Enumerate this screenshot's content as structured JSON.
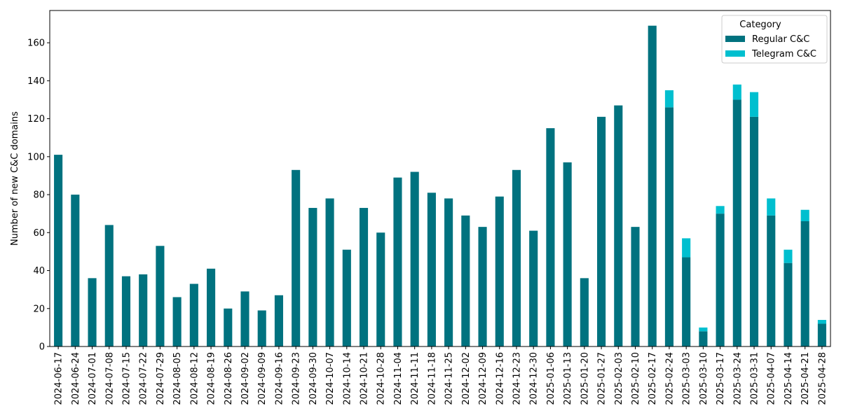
{
  "chart_data": {
    "type": "bar",
    "stacked": true,
    "xlabel": "",
    "ylabel": "Number of new C&C domains",
    "ylim": [
      0,
      177
    ],
    "yticks": [
      0,
      20,
      40,
      60,
      80,
      100,
      120,
      140,
      160
    ],
    "grid": false,
    "legend": {
      "title": "Category",
      "placement": "top-right"
    },
    "categories": [
      "2024-06-17",
      "2024-06-24",
      "2024-07-01",
      "2024-07-08",
      "2024-07-15",
      "2024-07-22",
      "2024-07-29",
      "2024-08-05",
      "2024-08-12",
      "2024-08-19",
      "2024-08-26",
      "2024-09-02",
      "2024-09-09",
      "2024-09-16",
      "2024-09-23",
      "2024-09-30",
      "2024-10-07",
      "2024-10-14",
      "2024-10-21",
      "2024-10-28",
      "2024-11-04",
      "2024-11-11",
      "2024-11-18",
      "2024-11-25",
      "2024-12-02",
      "2024-12-09",
      "2024-12-16",
      "2024-12-23",
      "2024-12-30",
      "2025-01-06",
      "2025-01-13",
      "2025-01-20",
      "2025-01-27",
      "2025-02-03",
      "2025-02-10",
      "2025-02-17",
      "2025-02-24",
      "2025-03-03",
      "2025-03-10",
      "2025-03-17",
      "2025-03-24",
      "2025-03-31",
      "2025-04-07",
      "2025-04-14",
      "2025-04-21",
      "2025-04-28"
    ],
    "series": [
      {
        "name": "Regular C&C",
        "color": "#00727f",
        "values": [
          101,
          80,
          36,
          64,
          37,
          38,
          53,
          26,
          33,
          41,
          20,
          29,
          19,
          27,
          93,
          73,
          78,
          51,
          73,
          60,
          89,
          92,
          81,
          78,
          69,
          63,
          79,
          93,
          61,
          115,
          97,
          36,
          121,
          127,
          63,
          169,
          126,
          47,
          8,
          70,
          130,
          121,
          69,
          44,
          66,
          12
        ]
      },
      {
        "name": "Telegram C&C",
        "color": "#00bfcf",
        "values": [
          0,
          0,
          0,
          0,
          0,
          0,
          0,
          0,
          0,
          0,
          0,
          0,
          0,
          0,
          0,
          0,
          0,
          0,
          0,
          0,
          0,
          0,
          0,
          0,
          0,
          0,
          0,
          0,
          0,
          0,
          0,
          0,
          0,
          0,
          0,
          0,
          9,
          10,
          2,
          4,
          8,
          13,
          9,
          7,
          6,
          2
        ]
      }
    ]
  }
}
